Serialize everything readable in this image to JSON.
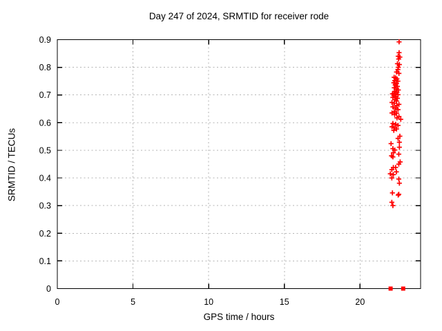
{
  "chart_data": {
    "type": "scatter",
    "title": "Day 247 of 2024, SRMTID for receiver rode",
    "xlabel": "GPS time / hours",
    "ylabel": "SRMTID / TECUs",
    "xlim": [
      0,
      24
    ],
    "ylim": [
      0,
      0.9
    ],
    "xticks": [
      0,
      5,
      10,
      15,
      20
    ],
    "yticks": [
      0,
      0.1,
      0.2,
      0.3,
      0.4,
      0.5,
      0.6,
      0.7,
      0.8,
      0.9
    ],
    "grid": true,
    "legend": "none",
    "marker_color": "#ff0000",
    "grid_color": "#b3b3b3",
    "axis_color": "#000000",
    "background": "#ffffff",
    "series": [
      {
        "marker": "plus",
        "points": [
          [
            22.58,
            0.892
          ],
          [
            22.58,
            0.853
          ],
          [
            22.52,
            0.84
          ],
          [
            22.63,
            0.837
          ],
          [
            22.55,
            0.83
          ],
          [
            22.47,
            0.813
          ],
          [
            22.6,
            0.81
          ],
          [
            22.53,
            0.8
          ],
          [
            22.5,
            0.792
          ],
          [
            22.41,
            0.783
          ],
          [
            22.57,
            0.778
          ],
          [
            22.25,
            0.764
          ],
          [
            22.35,
            0.762
          ],
          [
            22.44,
            0.758
          ],
          [
            22.29,
            0.752
          ],
          [
            22.5,
            0.75
          ],
          [
            22.23,
            0.744
          ],
          [
            22.41,
            0.741
          ],
          [
            22.32,
            0.736
          ],
          [
            22.47,
            0.731
          ],
          [
            22.26,
            0.726
          ],
          [
            22.38,
            0.721
          ],
          [
            22.53,
            0.718
          ],
          [
            22.29,
            0.713
          ],
          [
            22.44,
            0.71
          ],
          [
            22.23,
            0.705
          ],
          [
            22.14,
            0.704
          ],
          [
            22.35,
            0.702
          ],
          [
            22.51,
            0.701
          ],
          [
            22.23,
            0.698
          ],
          [
            22.38,
            0.694
          ],
          [
            22.17,
            0.691
          ],
          [
            22.47,
            0.688
          ],
          [
            22.29,
            0.683
          ],
          [
            22.41,
            0.678
          ],
          [
            22.11,
            0.673
          ],
          [
            22.26,
            0.67
          ],
          [
            22.57,
            0.666
          ],
          [
            22.44,
            0.662
          ],
          [
            22.17,
            0.657
          ],
          [
            22.35,
            0.652
          ],
          [
            22.51,
            0.647
          ],
          [
            22.26,
            0.64
          ],
          [
            22.11,
            0.635
          ],
          [
            22.41,
            0.634
          ],
          [
            22.29,
            0.629
          ],
          [
            22.57,
            0.622
          ],
          [
            22.44,
            0.617
          ],
          [
            22.69,
            0.612
          ],
          [
            22.17,
            0.597
          ],
          [
            22.35,
            0.594
          ],
          [
            22.51,
            0.59
          ],
          [
            22.11,
            0.585
          ],
          [
            22.26,
            0.582
          ],
          [
            22.41,
            0.577
          ],
          [
            22.23,
            0.572
          ],
          [
            22.63,
            0.551
          ],
          [
            22.51,
            0.543
          ],
          [
            22.6,
            0.529
          ],
          [
            22.05,
            0.524
          ],
          [
            22.6,
            0.511
          ],
          [
            22.17,
            0.506
          ],
          [
            22.3,
            0.501
          ],
          [
            22.2,
            0.491
          ],
          [
            22.56,
            0.486
          ],
          [
            22.08,
            0.48
          ],
          [
            22.17,
            0.476
          ],
          [
            22.65,
            0.458
          ],
          [
            22.56,
            0.45
          ],
          [
            22.2,
            0.438
          ],
          [
            22.35,
            0.438
          ],
          [
            22.1,
            0.43
          ],
          [
            22.4,
            0.422
          ],
          [
            22.0,
            0.415
          ],
          [
            22.2,
            0.412
          ],
          [
            22.1,
            0.4
          ],
          [
            22.56,
            0.396
          ],
          [
            22.6,
            0.381
          ],
          [
            22.14,
            0.346
          ],
          [
            22.56,
            0.341
          ],
          [
            22.52,
            0.338
          ],
          [
            22.1,
            0.312
          ],
          [
            22.17,
            0.3
          ]
        ]
      },
      {
        "marker": "filled-square",
        "points": [
          [
            22.02,
            0.0
          ],
          [
            22.85,
            0.0
          ]
        ]
      }
    ]
  }
}
